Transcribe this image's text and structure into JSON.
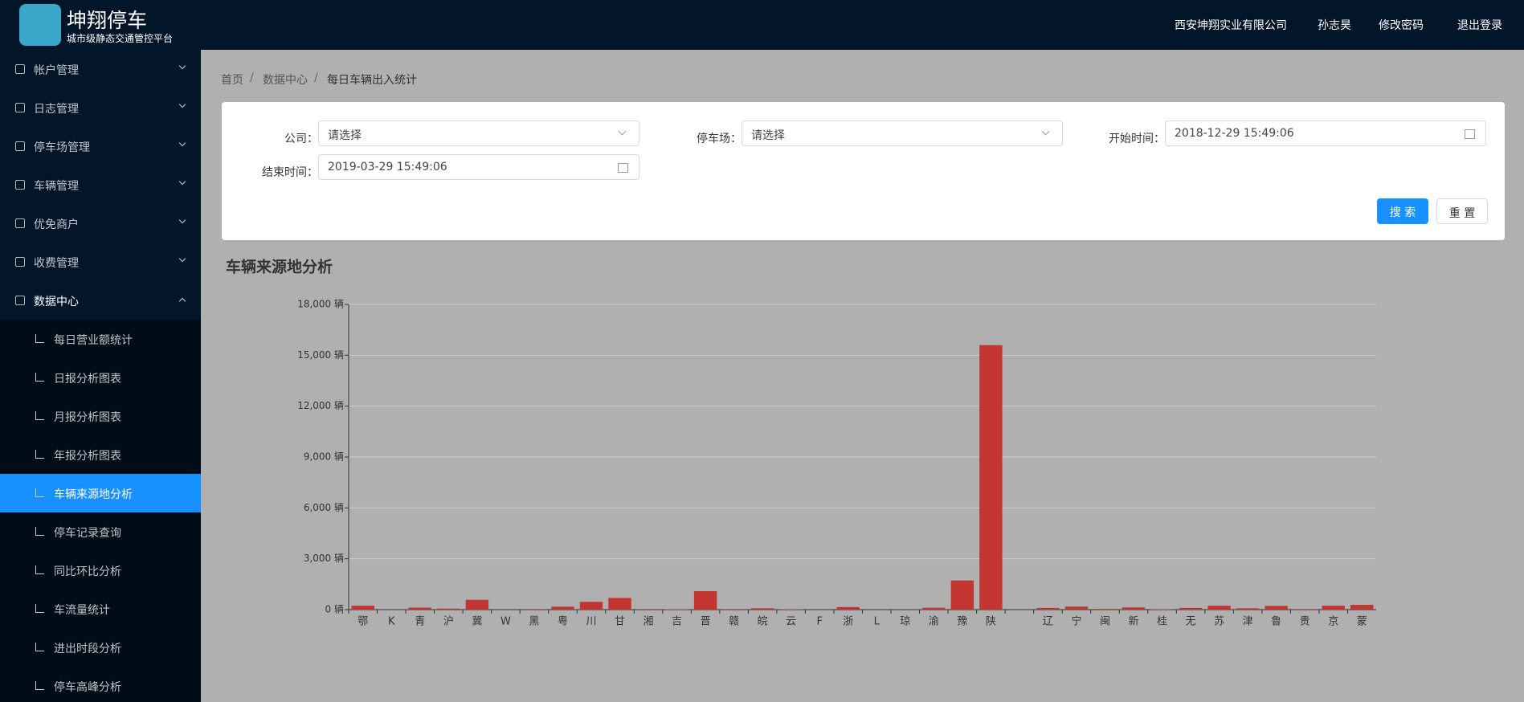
{
  "header": {
    "title": "坤翔停车",
    "subtitle": "城市级静态交通管控平台",
    "links": [
      "西安坤翔实业有限公司",
      "孙志昊",
      "修改密码",
      "退出登录"
    ]
  },
  "sidebar": {
    "menu": [
      {
        "label": "帐户管理"
      },
      {
        "label": "日志管理"
      },
      {
        "label": "停车场管理"
      },
      {
        "label": "车辆管理"
      },
      {
        "label": "优免商户"
      },
      {
        "label": "收费管理"
      },
      {
        "label": "数据中心",
        "children": [
          "每日营业额统计",
          "日报分析图表",
          "月报分析图表",
          "年报分析图表",
          "车辆来源地分析",
          "停车记录查询",
          "同比环比分析",
          "车流量统计",
          "进出时段分析",
          "停车高峰分析"
        ]
      }
    ]
  },
  "breadcrumb": [
    "首页",
    "数据中心",
    "每日车辆出入统计"
  ],
  "form": {
    "fields": [
      {
        "label": "公司：",
        "text": "请选择"
      },
      {
        "label": "停车场：",
        "text": "请选择"
      },
      {
        "label": "开始时间：",
        "text": "2018-12-29 15:49:06"
      },
      {
        "label": "结束时间：",
        "text": "2019-03-29 15:49:06"
      }
    ],
    "buttons": [
      "搜 索",
      "重 置"
    ]
  },
  "chart_data": {
    "type": "bar",
    "title": "车辆来源地分析",
    "categories": [
      "鄂",
      "K",
      "青",
      "沪",
      "冀",
      "W",
      "黑",
      "粤",
      "川",
      "甘",
      "湘",
      "吉",
      "晋",
      "赣",
      "皖",
      "云",
      "F",
      "浙",
      "L",
      "琼",
      "渝",
      "豫",
      "陕",
      null,
      "辽",
      "宁",
      "闽",
      "新",
      "桂",
      "无",
      "苏",
      "津",
      "鲁",
      "贵",
      "京",
      "蒙"
    ],
    "values": [
      230,
      0,
      120,
      60,
      580,
      0,
      30,
      170,
      460,
      690,
      30,
      20,
      1090,
      30,
      80,
      20,
      0,
      150,
      0,
      10,
      110,
      1720,
      15600,
      0,
      100,
      180,
      40,
      130,
      20,
      100,
      230,
      80,
      220,
      30,
      230,
      280
    ],
    "color": "#c23531",
    "ylim": [
      0,
      18000
    ],
    "yticks": [
      {
        "value": 0,
        "label": "0 辆"
      },
      {
        "value": 3000,
        "label": "3,000 辆"
      },
      {
        "value": 6000,
        "label": "6,000 辆"
      },
      {
        "value": 9000,
        "label": "9,000 辆"
      },
      {
        "value": 12000,
        "label": "12,000 辆"
      },
      {
        "value": 15000,
        "label": "15,000 辆"
      },
      {
        "value": 18000,
        "label": "18,000 辆"
      }
    ],
    "grid": true
  }
}
